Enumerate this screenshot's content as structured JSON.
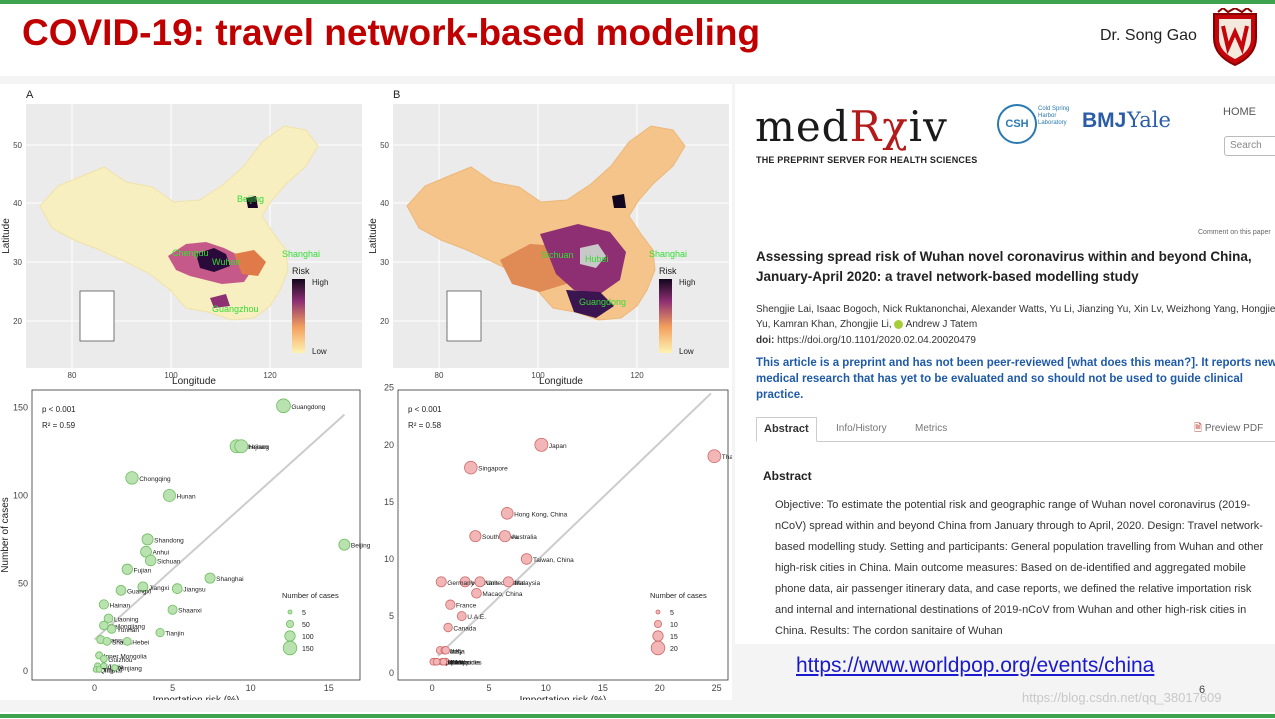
{
  "header": {
    "title": "COVID-19: travel network-based modeling",
    "author": "Dr. Song Gao"
  },
  "figure": {
    "panel_a_label": "A",
    "panel_b_label": "B",
    "map_xlabel": "Longitude",
    "map_ylabel": "Latitude",
    "map_x_ticks": [
      "80",
      "100",
      "120"
    ],
    "map_y_ticks": [
      "20",
      "30",
      "40",
      "50"
    ],
    "legend_title": "Risk",
    "legend_high": "High",
    "legend_low": "Low",
    "map_a_cities": [
      "Beijing",
      "Chengdu",
      "Wuhan",
      "Shanghai",
      "Guangzhou"
    ],
    "map_b_cities": [
      "Sichuan",
      "Hubei",
      "Shanghai",
      "Guangdong"
    ],
    "colors": {
      "low": "#f7efc0",
      "mid": "#e08a55",
      "high": "#3a1550",
      "green": "#33dd33"
    }
  },
  "chart_data": [
    {
      "type": "scatter",
      "xlabel": "Importation risk (%)",
      "ylabel": "Number of cases",
      "xlim": [
        -4,
        17
      ],
      "ylim": [
        -5,
        160
      ],
      "x_ticks": [
        0,
        5,
        10,
        15
      ],
      "y_ticks": [
        0,
        50,
        100,
        150
      ],
      "p_label": "p < 0.001",
      "r2_label": "R² = 0.59",
      "legend_title": "Number of cases",
      "legend_values": [
        "5",
        "50",
        "100",
        "150"
      ],
      "fill": "#b9e2b0",
      "stroke": "#6cbf5d",
      "points": [
        {
          "label": "Guangdong",
          "x": 12.1,
          "y": 151
        },
        {
          "label": "Zhejiang",
          "x": 9.1,
          "y": 128
        },
        {
          "label": "Henan",
          "x": 9.4,
          "y": 128
        },
        {
          "label": "Chongqing",
          "x": 2.4,
          "y": 110
        },
        {
          "label": "Hunan",
          "x": 4.8,
          "y": 100
        },
        {
          "label": "Beijing",
          "x": 16,
          "y": 72
        },
        {
          "label": "Shandong",
          "x": 3.4,
          "y": 75
        },
        {
          "label": "Anhui",
          "x": 3.3,
          "y": 68
        },
        {
          "label": "Sichuan",
          "x": 3.6,
          "y": 63
        },
        {
          "label": "Fujian",
          "x": 2.1,
          "y": 58
        },
        {
          "label": "Shanghai",
          "x": 7.4,
          "y": 53
        },
        {
          "label": "Jiangxi",
          "x": 3.1,
          "y": 48
        },
        {
          "label": "Guangxi",
          "x": 1.7,
          "y": 46
        },
        {
          "label": "Jiangsu",
          "x": 5.3,
          "y": 47
        },
        {
          "label": "Hainan",
          "x": 0.6,
          "y": 38
        },
        {
          "label": "Liaoning",
          "x": 0.9,
          "y": 30
        },
        {
          "label": "Shaanxi",
          "x": 5,
          "y": 35
        },
        {
          "label": "Heilongjiang",
          "x": 0.6,
          "y": 26
        },
        {
          "label": "Yunnan",
          "x": 1.1,
          "y": 24
        },
        {
          "label": "Tianjin",
          "x": 4.2,
          "y": 22
        },
        {
          "label": "Gansu",
          "x": 0.4,
          "y": 18
        },
        {
          "label": "Shanxi",
          "x": 0.8,
          "y": 17
        },
        {
          "label": "Hebei",
          "x": 2.1,
          "y": 17
        },
        {
          "label": "Inner Mongolia",
          "x": 0.3,
          "y": 9
        },
        {
          "label": "Guizhou",
          "x": 0.6,
          "y": 7
        },
        {
          "label": "Ningxia",
          "x": 0.2,
          "y": 3
        },
        {
          "label": "Jilin",
          "x": 0.6,
          "y": 3
        },
        {
          "label": "Qinghai",
          "x": 0.1,
          "y": 1
        },
        {
          "label": "Tibet",
          "x": 0.3,
          "y": 1
        },
        {
          "label": "Xinjiang",
          "x": 1.3,
          "y": 2
        }
      ],
      "fit_line": {
        "x": [
          0,
          16
        ],
        "y": [
          18,
          146
        ]
      }
    },
    {
      "type": "scatter",
      "xlabel": "Importation risk (%)",
      "ylabel": "",
      "xlim": [
        -3,
        26
      ],
      "ylim": [
        -0.6,
        24.8
      ],
      "x_ticks": [
        0,
        5,
        10,
        15,
        20,
        25
      ],
      "y_ticks": [
        0,
        5,
        10,
        15,
        20,
        25
      ],
      "p_label": "p < 0.001",
      "r2_label": "R² = 0.58",
      "legend_title": "Number of cases",
      "legend_values": [
        "5",
        "10",
        "15",
        "20"
      ],
      "fill": "#f2b6b6",
      "stroke": "#d06a6a",
      "points": [
        {
          "label": "Japan",
          "x": 9.6,
          "y": 20
        },
        {
          "label": "Thailand",
          "x": 24.8,
          "y": 19
        },
        {
          "label": "Singapore",
          "x": 3.4,
          "y": 18
        },
        {
          "label": "Hong Kong, China",
          "x": 6.6,
          "y": 14
        },
        {
          "label": "South Korea",
          "x": 3.8,
          "y": 12
        },
        {
          "label": "Australia",
          "x": 6.4,
          "y": 12
        },
        {
          "label": "Taiwan, China",
          "x": 8.3,
          "y": 10
        },
        {
          "label": "Viet Nam",
          "x": 2.9,
          "y": 8
        },
        {
          "label": "United States",
          "x": 4.2,
          "y": 8
        },
        {
          "label": "Germany",
          "x": 0.8,
          "y": 8
        },
        {
          "label": "Malaysia",
          "x": 6.7,
          "y": 8
        },
        {
          "label": "France",
          "x": 1.6,
          "y": 6
        },
        {
          "label": "Macao, China",
          "x": 3.9,
          "y": 7
        },
        {
          "label": "Canada",
          "x": 1.4,
          "y": 4
        },
        {
          "label": "U.A.E.",
          "x": 2.6,
          "y": 5
        },
        {
          "label": "Russia",
          "x": 0.7,
          "y": 2
        },
        {
          "label": "U.K.",
          "x": 1.1,
          "y": 2
        },
        {
          "label": "Italy",
          "x": 1.2,
          "y": 2
        },
        {
          "label": "Sweden",
          "x": 0.4,
          "y": 1
        },
        {
          "label": "Spain",
          "x": 0.9,
          "y": 1
        },
        {
          "label": "Cambodia",
          "x": 1.2,
          "y": 1
        },
        {
          "label": "Finland",
          "x": 0.2,
          "y": 1
        },
        {
          "label": "Philippines",
          "x": 1.2,
          "y": 1
        },
        {
          "label": "Nepal",
          "x": 0.1,
          "y": 1
        },
        {
          "label": "Sri Lanka",
          "x": 0.4,
          "y": 1
        },
        {
          "label": "India",
          "x": 1,
          "y": 1
        }
      ],
      "fit_line": {
        "x": [
          0.5,
          24.5
        ],
        "y": [
          1.5,
          24.5
        ]
      }
    }
  ],
  "paper": {
    "logo_pre": "med",
    "logo_rx": "Rχ",
    "logo_post": "iv",
    "tagline": "THE PREPRINT SERVER FOR HEALTH SCIENCES",
    "csh": "CSH",
    "csh_text": "Cold Spring Harbor Laboratory",
    "bmj": "BMJ",
    "yale": "Yale",
    "home": "HOME",
    "search_placeholder": "Search",
    "comment_link": "Comment on this paper",
    "title": "Assessing spread risk of Wuhan novel coronavirus within and beyond China, January-April 2020: a travel network-based modelling study",
    "authors": "Shengjie Lai, Isaac Bogoch, Nick Ruktanonchai, Alexander Watts, Yu Li, Jianzing Yu, Xin Lv, Weizhong Yang, Hongjie Yu, Kamran Khan, Zhongjie Li,",
    "last_author": "Andrew J Tatem",
    "doi_label": "doi:",
    "doi_value": "https://doi.org/10.1101/2020.02.04.20020479",
    "notice": "This article is a preprint and has not been peer-reviewed [what does this mean?]. It reports new medical research that has yet to be evaluated and so should not be used to guide clinical practice.",
    "tabs": [
      "Abstract",
      "Info/History",
      "Metrics"
    ],
    "preview_pdf": "Preview PDF",
    "abstract_heading": "Abstract",
    "abstract_text": "Objective: To estimate the potential risk and geographic range of Wuhan novel coronavirus (2019-nCoV) spread within and beyond China from January through to April, 2020. Design: Travel network-based modelling study. Setting and participants: General population travelling from Wuhan and other high-risk cities in China. Main outcome measures: Based on de-identified and aggregated mobile phone data, air passenger itinerary data, and case reports, we defined the relative importation risk and internal and international destinations of 2019-nCoV from Wuhan and other high-risk cities in China. Results: The cordon sanitaire of Wuhan"
  },
  "footer": {
    "link": "https://www.worldpop.org/events/china",
    "watermark": "https://blog.csdn.net/qq_38017609",
    "page_number": "6"
  }
}
